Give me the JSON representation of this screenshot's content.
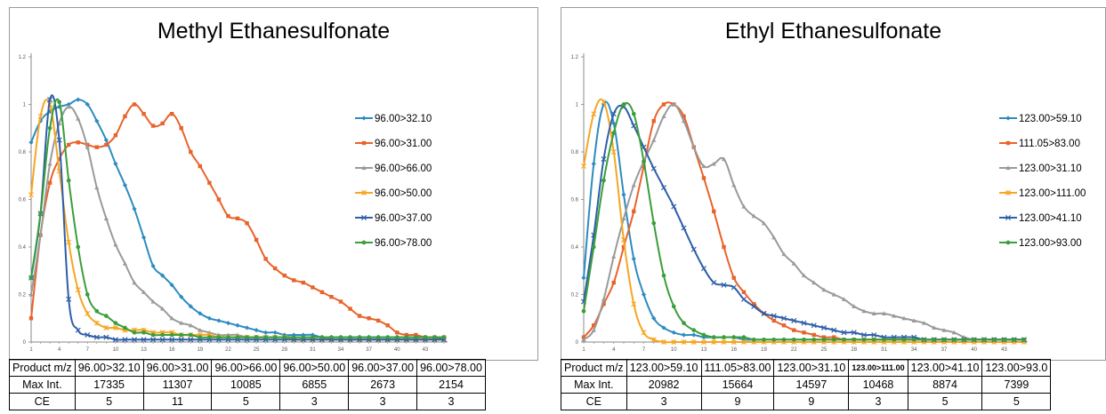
{
  "chart_data": [
    {
      "type": "line",
      "title": "Methyl Ethanesulfonate",
      "x": [
        1,
        2,
        3,
        4,
        5,
        6,
        7,
        8,
        9,
        10,
        11,
        12,
        13,
        14,
        15,
        16,
        17,
        18,
        19,
        20,
        21,
        22,
        23,
        24,
        25,
        26,
        27,
        28,
        29,
        30,
        31,
        32,
        33,
        34,
        35,
        36,
        37,
        38,
        39,
        40,
        41,
        42,
        43,
        44,
        45
      ],
      "x_ticks": [
        1,
        4,
        7,
        10,
        13,
        16,
        19,
        22,
        25,
        28,
        31,
        34,
        37,
        40,
        43
      ],
      "ylim": [
        0,
        1.2
      ],
      "y_ticks": [
        0,
        0.2,
        0.4,
        0.6,
        0.8,
        1,
        1.2
      ],
      "legend_position": "right",
      "series": [
        {
          "name": "96.00>32.10",
          "color": "#2E8BC0",
          "marker": "diamond",
          "values": [
            0.84,
            0.93,
            0.97,
            0.99,
            1.0,
            1.02,
            1.0,
            0.93,
            0.85,
            0.75,
            0.66,
            0.56,
            0.44,
            0.32,
            0.28,
            0.24,
            0.19,
            0.15,
            0.12,
            0.1,
            0.09,
            0.08,
            0.07,
            0.06,
            0.05,
            0.04,
            0.04,
            0.03,
            0.03,
            0.03,
            0.03,
            0.02,
            0.02,
            0.02,
            0.02,
            0.02,
            0.02,
            0.02,
            0.02,
            0.02,
            0.02,
            0.02,
            0.02,
            0.02,
            0.01
          ]
        },
        {
          "name": "96.00>31.00",
          "color": "#E8632B",
          "marker": "square",
          "values": [
            0.1,
            0.45,
            0.67,
            0.77,
            0.83,
            0.84,
            0.83,
            0.82,
            0.83,
            0.87,
            0.95,
            1.0,
            0.96,
            0.91,
            0.92,
            0.96,
            0.9,
            0.8,
            0.74,
            0.67,
            0.6,
            0.53,
            0.52,
            0.5,
            0.43,
            0.35,
            0.31,
            0.28,
            0.26,
            0.25,
            0.23,
            0.21,
            0.19,
            0.17,
            0.14,
            0.11,
            0.1,
            0.09,
            0.07,
            0.04,
            0.03,
            0.03,
            0.02,
            0.02,
            0.02
          ]
        },
        {
          "name": "96.00>66.00",
          "color": "#9A9A9A",
          "marker": "triangle",
          "values": [
            0.2,
            0.45,
            0.75,
            0.92,
            0.99,
            0.94,
            0.82,
            0.65,
            0.52,
            0.41,
            0.33,
            0.25,
            0.21,
            0.17,
            0.14,
            0.1,
            0.08,
            0.07,
            0.05,
            0.04,
            0.03,
            0.03,
            0.03,
            0.02,
            0.02,
            0.02,
            0.02,
            0.02,
            0.02,
            0.02,
            0.02,
            0.02,
            0.01,
            0.01,
            0.01,
            0.01,
            0.01,
            0.01,
            0.01,
            0.01,
            0.01,
            0.01,
            0.01,
            0.01,
            0.01
          ]
        },
        {
          "name": "96.00>50.00",
          "color": "#F5A623",
          "marker": "star",
          "values": [
            0.62,
            0.95,
            1.0,
            0.72,
            0.42,
            0.22,
            0.12,
            0.08,
            0.06,
            0.06,
            0.05,
            0.05,
            0.05,
            0.04,
            0.04,
            0.04,
            0.03,
            0.03,
            0.03,
            0.03,
            0.02,
            0.02,
            0.02,
            0.02,
            0.02,
            0.02,
            0.02,
            0.02,
            0.01,
            0.01,
            0.01,
            0.01,
            0.01,
            0.01,
            0.01,
            0.01,
            0.01,
            0.01,
            0.01,
            0.01,
            0.01,
            0.01,
            0.01,
            0.01,
            0.01
          ]
        },
        {
          "name": "96.00>37.00",
          "color": "#2E5FA8",
          "marker": "x",
          "values": [
            0.27,
            0.54,
            1.02,
            0.85,
            0.18,
            0.05,
            0.03,
            0.02,
            0.02,
            0.01,
            0.01,
            0.01,
            0.01,
            0.01,
            0.01,
            0.01,
            0.01,
            0.01,
            0.01,
            0.01,
            0.01,
            0.01,
            0.01,
            0.01,
            0.01,
            0.01,
            0.01,
            0.01,
            0.01,
            0.01,
            0.01,
            0.01,
            0.01,
            0.01,
            0.01,
            0.01,
            0.01,
            0.01,
            0.01,
            0.01,
            0.01,
            0.01,
            0.01,
            0.01,
            0.01
          ]
        },
        {
          "name": "96.00>78.00",
          "color": "#3A9E3A",
          "marker": "circle",
          "values": [
            0.27,
            0.54,
            0.9,
            1.01,
            0.68,
            0.4,
            0.2,
            0.13,
            0.11,
            0.08,
            0.06,
            0.04,
            0.04,
            0.03,
            0.03,
            0.03,
            0.03,
            0.03,
            0.02,
            0.02,
            0.02,
            0.02,
            0.02,
            0.02,
            0.02,
            0.02,
            0.02,
            0.02,
            0.02,
            0.02,
            0.02,
            0.02,
            0.02,
            0.02,
            0.02,
            0.02,
            0.02,
            0.02,
            0.02,
            0.02,
            0.02,
            0.02,
            0.02,
            0.02,
            0.02
          ]
        }
      ],
      "table": {
        "row_labels": [
          "Product m/z",
          "Max Int.",
          "CE"
        ],
        "columns": [
          "96.00>32.10",
          "96.00>31.00",
          "96.00>66.00",
          "96.00>50.00",
          "96.00>37.00",
          "96.00>78.00"
        ],
        "max_int": [
          "17335",
          "11307",
          "10085",
          "6855",
          "2673",
          "2154"
        ],
        "ce": [
          "5",
          "11",
          "5",
          "3",
          "3",
          "3"
        ]
      }
    },
    {
      "type": "line",
      "title": "Ethyl Ethanesulfonate",
      "x": [
        1,
        2,
        3,
        4,
        5,
        6,
        7,
        8,
        9,
        10,
        11,
        12,
        13,
        14,
        15,
        16,
        17,
        18,
        19,
        20,
        21,
        22,
        23,
        24,
        25,
        26,
        27,
        28,
        29,
        30,
        31,
        32,
        33,
        34,
        35,
        36,
        37,
        38,
        39,
        40,
        41,
        42,
        43,
        44,
        45
      ],
      "x_ticks": [
        1,
        4,
        7,
        10,
        13,
        16,
        19,
        22,
        25,
        28,
        31,
        34,
        37,
        40,
        43
      ],
      "ylim": [
        0,
        1.2
      ],
      "y_ticks": [
        0,
        0.2,
        0.4,
        0.6,
        0.8,
        1,
        1.2
      ],
      "legend_position": "right",
      "series": [
        {
          "name": "123.00>59.10",
          "color": "#2E8BC0",
          "marker": "diamond",
          "values": [
            0.27,
            0.75,
            1.0,
            0.92,
            0.62,
            0.35,
            0.2,
            0.1,
            0.06,
            0.04,
            0.03,
            0.03,
            0.02,
            0.02,
            0.02,
            0.02,
            0.01,
            0.01,
            0.01,
            0.01,
            0.01,
            0.01,
            0.01,
            0.01,
            0.01,
            0.01,
            0.01,
            0.01,
            0.01,
            0.01,
            0.01,
            0.01,
            0.01,
            0.01,
            0.01,
            0.01,
            0.01,
            0.01,
            0.01,
            0.01,
            0.01,
            0.01,
            0.01,
            0.01,
            0.01
          ]
        },
        {
          "name": "111.05>83.00",
          "color": "#E8632B",
          "marker": "square",
          "values": [
            0.02,
            0.07,
            0.16,
            0.25,
            0.4,
            0.55,
            0.74,
            0.93,
            1.0,
            1.0,
            0.95,
            0.82,
            0.69,
            0.55,
            0.4,
            0.27,
            0.21,
            0.16,
            0.12,
            0.09,
            0.07,
            0.05,
            0.04,
            0.03,
            0.02,
            0.02,
            0.01,
            0.01,
            0.01,
            0.01,
            0.01,
            0.01,
            0.01,
            0.01,
            0.01,
            0.01,
            0.01,
            0.01,
            0.01,
            0.01,
            0.01,
            0.01,
            0.01,
            0.01,
            0.01
          ]
        },
        {
          "name": "123.00>31.10",
          "color": "#9A9A9A",
          "marker": "triangle",
          "values": [
            0.01,
            0.05,
            0.18,
            0.36,
            0.52,
            0.66,
            0.76,
            0.85,
            0.95,
            1.0,
            0.93,
            0.82,
            0.74,
            0.75,
            0.77,
            0.66,
            0.57,
            0.53,
            0.5,
            0.44,
            0.37,
            0.33,
            0.28,
            0.25,
            0.22,
            0.2,
            0.18,
            0.15,
            0.13,
            0.12,
            0.12,
            0.11,
            0.1,
            0.09,
            0.08,
            0.06,
            0.05,
            0.04,
            0.02,
            0.01,
            0.01,
            0.01,
            0.01,
            0.01,
            0.01
          ]
        },
        {
          "name": "123.00>111.00",
          "color": "#F5A623",
          "marker": "star",
          "values": [
            0.74,
            0.96,
            1.01,
            0.8,
            0.43,
            0.16,
            0.04,
            0.01,
            0.0,
            0.0,
            0.0,
            0.0,
            0.0,
            0.0,
            0.0,
            0.0,
            0.0,
            0.0,
            0.0,
            0.0,
            0.0,
            0.0,
            0.0,
            0.0,
            0.0,
            0.0,
            0.0,
            0.0,
            0.0,
            0.0,
            0.0,
            0.0,
            0.0,
            0.0,
            0.0,
            0.0,
            0.0,
            0.0,
            0.0,
            0.0,
            0.0,
            0.0,
            0.0,
            0.0,
            0.0
          ]
        },
        {
          "name": "123.00>41.10",
          "color": "#2E5FA8",
          "marker": "x",
          "values": [
            0.17,
            0.45,
            0.77,
            0.96,
            0.99,
            0.91,
            0.82,
            0.73,
            0.65,
            0.57,
            0.48,
            0.39,
            0.31,
            0.25,
            0.24,
            0.23,
            0.18,
            0.15,
            0.12,
            0.11,
            0.1,
            0.09,
            0.08,
            0.07,
            0.06,
            0.05,
            0.04,
            0.04,
            0.03,
            0.03,
            0.02,
            0.02,
            0.02,
            0.02,
            0.01,
            0.01,
            0.01,
            0.01,
            0.01,
            0.01,
            0.01,
            0.01,
            0.01,
            0.01,
            0.01
          ]
        },
        {
          "name": "123.00>93.00",
          "color": "#3A9E3A",
          "marker": "circle",
          "values": [
            0.13,
            0.4,
            0.68,
            0.88,
            1.0,
            0.96,
            0.76,
            0.5,
            0.28,
            0.15,
            0.08,
            0.05,
            0.03,
            0.02,
            0.02,
            0.02,
            0.02,
            0.01,
            0.01,
            0.01,
            0.01,
            0.01,
            0.01,
            0.01,
            0.01,
            0.01,
            0.01,
            0.01,
            0.01,
            0.01,
            0.01,
            0.01,
            0.01,
            0.01,
            0.01,
            0.01,
            0.01,
            0.01,
            0.01,
            0.01,
            0.01,
            0.01,
            0.01,
            0.01,
            0.01
          ]
        }
      ],
      "table": {
        "row_labels": [
          "Product m/z",
          "Max Int.",
          "CE"
        ],
        "columns": [
          "123.00>59.10",
          "111.05>83.00",
          "123.00>31.10",
          "123.00>111.00",
          "123.00>41.10",
          "123.00>93.0"
        ],
        "max_int": [
          "20982",
          "15664",
          "14597",
          "10468",
          "8874",
          "7399"
        ],
        "ce": [
          "3",
          "9",
          "9",
          "3",
          "5",
          "5"
        ]
      }
    }
  ]
}
